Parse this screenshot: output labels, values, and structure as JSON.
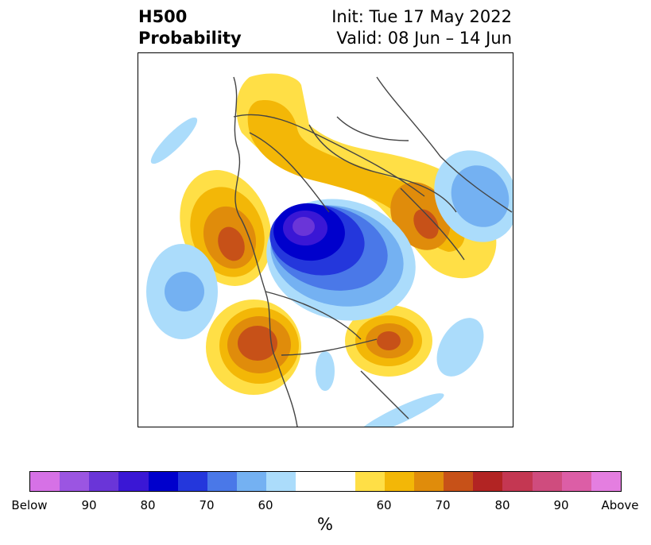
{
  "title": {
    "left_line1": "H500",
    "left_line2": "Probability",
    "right_line1": "Init: Tue 17 May 2022",
    "right_line2": "Valid: 08 Jun – 14 Jun"
  },
  "colorbar": {
    "unit": "%",
    "labels": [
      "Below",
      "90",
      "80",
      "70",
      "60",
      "60",
      "70",
      "80",
      "90",
      "Above"
    ],
    "segments": [
      {
        "color": "#d671e6",
        "weight": 1
      },
      {
        "color": "#9b55e2",
        "weight": 1
      },
      {
        "color": "#6a35d8",
        "weight": 1
      },
      {
        "color": "#3a17d5",
        "weight": 1
      },
      {
        "color": "#0000cc",
        "weight": 1
      },
      {
        "color": "#2437dc",
        "weight": 1
      },
      {
        "color": "#4a78e8",
        "weight": 1
      },
      {
        "color": "#74b1f2",
        "weight": 1
      },
      {
        "color": "#abdcfb",
        "weight": 1
      },
      {
        "color": "#ffffff",
        "weight": 2
      },
      {
        "color": "#ffdf46",
        "weight": 1
      },
      {
        "color": "#f3b707",
        "weight": 1
      },
      {
        "color": "#e08c0b",
        "weight": 1
      },
      {
        "color": "#c75118",
        "weight": 1
      },
      {
        "color": "#b22423",
        "weight": 1
      },
      {
        "color": "#c43752",
        "weight": 1
      },
      {
        "color": "#cf4c7e",
        "weight": 1
      },
      {
        "color": "#dc5ea6",
        "weight": 1
      },
      {
        "color": "#e47ee0",
        "weight": 1
      }
    ]
  },
  "map": {
    "colors": {
      "below_55": "#abdcfb",
      "below_60": "#74b1f2",
      "below_65": "#4a78e8",
      "below_70": "#2437dc",
      "below_75": "#0000cc",
      "below_80": "#3a17d5",
      "below_85": "#6a35d8",
      "above_55": "#ffdf46",
      "above_60": "#f3b707",
      "above_65": "#e08c0b",
      "above_70": "#c75118",
      "boundary": "#444444"
    }
  }
}
